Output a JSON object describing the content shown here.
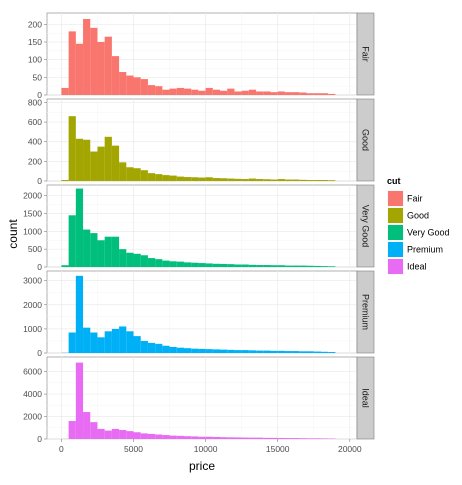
{
  "chart_data": {
    "type": "bar",
    "subtype": "faceted-histogram",
    "title": "",
    "xlabel": "price",
    "ylabel": "count",
    "xlim": [
      -1000,
      20500
    ],
    "x_ticks": [
      0,
      5000,
      10000,
      15000,
      20000
    ],
    "x_tick_labels": [
      "0",
      "5000",
      "10000",
      "15000",
      "20000"
    ],
    "bin_width": 500,
    "bin_starts": [
      0,
      500,
      1000,
      1500,
      2000,
      2500,
      3000,
      3500,
      4000,
      4500,
      5000,
      5500,
      6000,
      6500,
      7000,
      7500,
      8000,
      8500,
      9000,
      9500,
      10000,
      10500,
      11000,
      11500,
      12000,
      12500,
      13000,
      13500,
      14000,
      14500,
      15000,
      15500,
      16000,
      16500,
      17000,
      17500,
      18000,
      18500
    ],
    "grid": true,
    "legend": {
      "title": "cut",
      "position": "right",
      "items": [
        {
          "label": "Fair",
          "color": "#f8766d"
        },
        {
          "label": "Good",
          "color": "#a3a500"
        },
        {
          "label": "Very Good",
          "color": "#00bf7d"
        },
        {
          "label": "Premium",
          "color": "#00b0f6"
        },
        {
          "label": "Ideal",
          "color": "#e76bf3"
        }
      ]
    },
    "series": [
      {
        "name": "Fair",
        "color": "#f8766d",
        "ylim": [
          0,
          232
        ],
        "y_ticks": [
          0,
          50,
          100,
          150,
          200
        ],
        "values": [
          20,
          180,
          145,
          215,
          190,
          150,
          165,
          110,
          65,
          55,
          50,
          45,
          28,
          25,
          15,
          18,
          20,
          18,
          15,
          12,
          20,
          15,
          12,
          18,
          10,
          12,
          15,
          10,
          10,
          8,
          10,
          8,
          8,
          7,
          5,
          5,
          5,
          3
        ]
      },
      {
        "name": "Good",
        "color": "#a3a500",
        "ylim": [
          0,
          835
        ],
        "y_ticks": [
          0,
          200,
          400,
          600,
          800
        ],
        "values": [
          10,
          660,
          430,
          420,
          300,
          350,
          450,
          360,
          190,
          140,
          130,
          110,
          80,
          70,
          60,
          55,
          45,
          40,
          38,
          35,
          38,
          30,
          28,
          25,
          22,
          20,
          25,
          20,
          18,
          15,
          20,
          15,
          15,
          12,
          10,
          10,
          10,
          8
        ]
      },
      {
        "name": "Very Good",
        "color": "#00bf7d",
        "ylim": [
          0,
          2300
        ],
        "y_ticks": [
          0,
          500,
          1000,
          1500,
          2000
        ],
        "values": [
          50,
          1450,
          2200,
          1050,
          950,
          750,
          850,
          850,
          500,
          400,
          370,
          330,
          250,
          220,
          180,
          160,
          150,
          130,
          120,
          110,
          100,
          90,
          85,
          80,
          70,
          70,
          60,
          55,
          55,
          50,
          50,
          40,
          40,
          40,
          35,
          30,
          25,
          20
        ]
      },
      {
        "name": "Premium",
        "color": "#00b0f6",
        "ylim": [
          0,
          3400
        ],
        "y_ticks": [
          0,
          1000,
          2000,
          3000
        ],
        "values": [
          10,
          850,
          3200,
          1050,
          850,
          650,
          900,
          1000,
          1100,
          900,
          700,
          500,
          420,
          380,
          300,
          250,
          220,
          200,
          180,
          170,
          160,
          150,
          140,
          130,
          120,
          120,
          110,
          100,
          100,
          90,
          90,
          80,
          80,
          70,
          70,
          60,
          50,
          40
        ]
      },
      {
        "name": "Ideal",
        "color": "#e76bf3",
        "ylim": [
          0,
          7300
        ],
        "y_ticks": [
          0,
          2000,
          4000,
          6000
        ],
        "values": [
          10,
          1600,
          6800,
          2400,
          1500,
          900,
          750,
          900,
          800,
          700,
          600,
          500,
          450,
          400,
          350,
          300,
          280,
          250,
          230,
          200,
          200,
          180,
          160,
          150,
          140,
          130,
          120,
          120,
          100,
          100,
          90,
          80,
          80,
          70,
          60,
          60,
          50,
          40
        ]
      }
    ]
  }
}
